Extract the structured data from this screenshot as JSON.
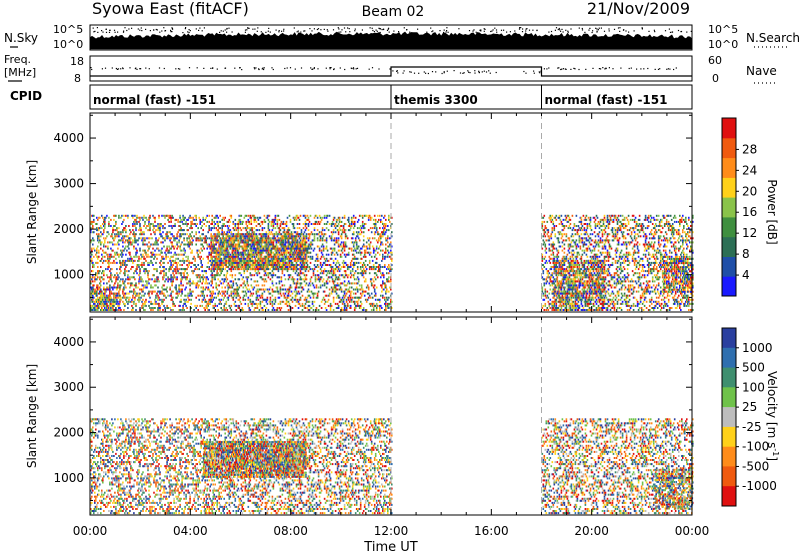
{
  "header": {
    "station": "Syowa East (fitACF)",
    "beam": "Beam 02",
    "date": "21/Nov/2009"
  },
  "strips": {
    "nsky_label": "N.Sky",
    "nsearch_label": "N.Search",
    "nsky_ticks": [
      "10^5",
      "10^0"
    ],
    "freq_label_1": "Freq.",
    "freq_label_2": "[MHz]",
    "freq_ticks": [
      "18",
      "8"
    ],
    "nave_ticks": [
      "60",
      "0"
    ],
    "nave_label": "Nave",
    "cpid_label": "CPID",
    "cpid_segments": [
      {
        "label": "normal (fast) -151",
        "start_h": 0,
        "end_h": 12
      },
      {
        "label": "themis 3300",
        "start_h": 12,
        "end_h": 18
      },
      {
        "label": "normal (fast) -151",
        "start_h": 18,
        "end_h": 24
      }
    ]
  },
  "colors": {
    "power_scale": [
      "#1a1aff",
      "#1f4fa8",
      "#2c6f55",
      "#3f8f3f",
      "#8ac34a",
      "#ffd11a",
      "#ff8c1a",
      "#f05a0f",
      "#e01010"
    ],
    "velocity_scale": [
      "#2a3f9f",
      "#2f6faf",
      "#3f8f6f",
      "#6fc24a",
      "#bdbdbd",
      "#ffd11a",
      "#ff8c1a",
      "#f05a0f",
      "#e01010"
    ]
  },
  "chart_data": [
    {
      "type": "heatmap",
      "name_printed": "",
      "ylabel": "Slant Range [km]",
      "ylim": [
        180,
        4550
      ],
      "yticks": [
        1000,
        2000,
        3000,
        4000
      ],
      "xlim": [
        0,
        24
      ],
      "colorbar_label": "Power [dB]",
      "colorbar_ticks": [
        "4",
        "8",
        "12",
        "16",
        "20",
        "24",
        "28"
      ],
      "colorbar_range": [
        0,
        30
      ],
      "echo_regions": [
        {
          "t0": 0.0,
          "t1": 12.0,
          "r0": 200,
          "r1": 2300,
          "density": 0.28,
          "value_range": [
            4,
            18
          ]
        },
        {
          "t0": 4.8,
          "t1": 8.6,
          "r0": 1100,
          "r1": 1900,
          "density": 0.7,
          "value_range": [
            6,
            22
          ]
        },
        {
          "t0": 0.0,
          "t1": 1.2,
          "r0": 200,
          "r1": 700,
          "density": 0.5,
          "value_range": [
            8,
            26
          ]
        },
        {
          "t0": 18.0,
          "t1": 24.0,
          "r0": 200,
          "r1": 2300,
          "density": 0.3,
          "value_range": [
            4,
            18
          ]
        },
        {
          "t0": 18.4,
          "t1": 20.5,
          "r0": 200,
          "r1": 1300,
          "density": 0.5,
          "value_range": [
            6,
            24
          ]
        },
        {
          "t0": 22.8,
          "t1": 24.0,
          "r0": 600,
          "r1": 1400,
          "density": 0.5,
          "value_range": [
            4,
            14
          ]
        }
      ]
    },
    {
      "type": "heatmap",
      "ylabel": "Slant Range [km]",
      "ylim": [
        180,
        4550
      ],
      "yticks": [
        1000,
        2000,
        3000,
        4000
      ],
      "xlim": [
        0,
        24
      ],
      "xticks": [
        "00:00",
        "04:00",
        "08:00",
        "12:00",
        "16:00",
        "20:00",
        "00:00"
      ],
      "xlabel": "Time UT",
      "colorbar_label": "Velocity [m s-1]",
      "colorbar_ticks": [
        "1000",
        "500",
        "100",
        "25",
        "-25",
        "-100",
        "-500",
        "-1000"
      ],
      "echo_regions": [
        {
          "t0": 0.0,
          "t1": 12.0,
          "r0": 200,
          "r1": 2300,
          "density": 0.3,
          "value_range": [
            -1000,
            500
          ]
        },
        {
          "t0": 4.5,
          "t1": 8.6,
          "r0": 1000,
          "r1": 1800,
          "density": 0.75,
          "value_range": [
            -600,
            100
          ]
        },
        {
          "t0": 18.0,
          "t1": 24.0,
          "r0": 200,
          "r1": 2300,
          "density": 0.3,
          "value_range": [
            -1000,
            1000
          ]
        },
        {
          "t0": 22.5,
          "t1": 24.0,
          "r0": 300,
          "r1": 1200,
          "density": 0.5,
          "value_range": [
            100,
            1000
          ]
        }
      ]
    }
  ]
}
